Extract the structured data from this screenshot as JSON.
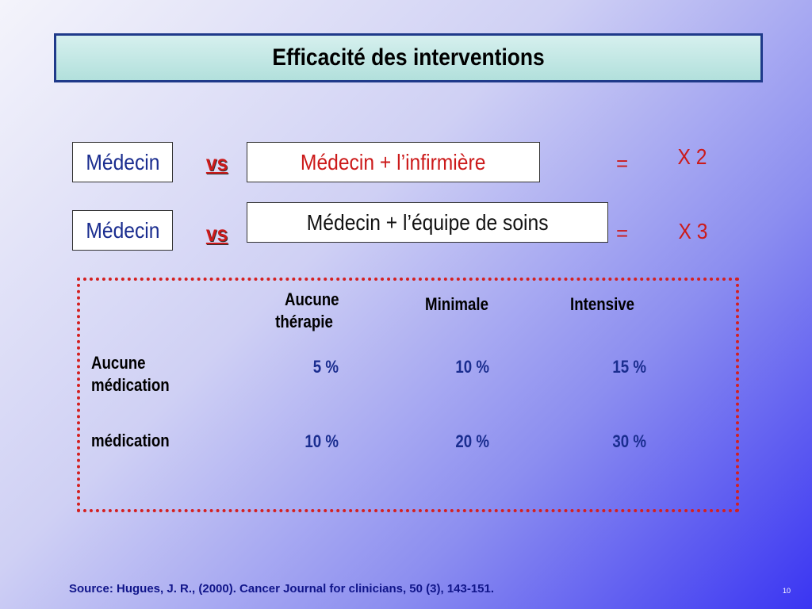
{
  "title": "Efficacité des interventions",
  "comparisons": [
    {
      "left": "Médecin",
      "vs": "vs",
      "right": "Médecin + l’infirmière",
      "eq": "=",
      "result": "X 2"
    },
    {
      "left": "Médecin",
      "vs": "vs",
      "right": "Médecin + l’équipe de soins",
      "eq": "=",
      "result": "X 3"
    }
  ],
  "table": {
    "columns": [
      "Aucune thérapie",
      "Minimale",
      "Intensive"
    ],
    "column_lines": [
      [
        "Aucune",
        "thérapie"
      ],
      [
        "Minimale"
      ],
      [
        "Intensive"
      ]
    ],
    "rows": [
      {
        "label_lines": [
          "Aucune",
          "médication"
        ],
        "values": [
          "5 %",
          "10 %",
          "15 %"
        ]
      },
      {
        "label_lines": [
          "médication"
        ],
        "values": [
          "10 %",
          "20 %",
          "30 %"
        ]
      }
    ]
  },
  "source": "Source: Hugues, J. R., (2000). Cancer Journal for clinicians, 50 (3), 143-151.",
  "page_number": "10",
  "colors": {
    "title_border": "#1f3a8a",
    "title_fill": "#b2e0dc",
    "accent_red": "#cc1a1a",
    "text_blue": "#1a2d8f"
  }
}
